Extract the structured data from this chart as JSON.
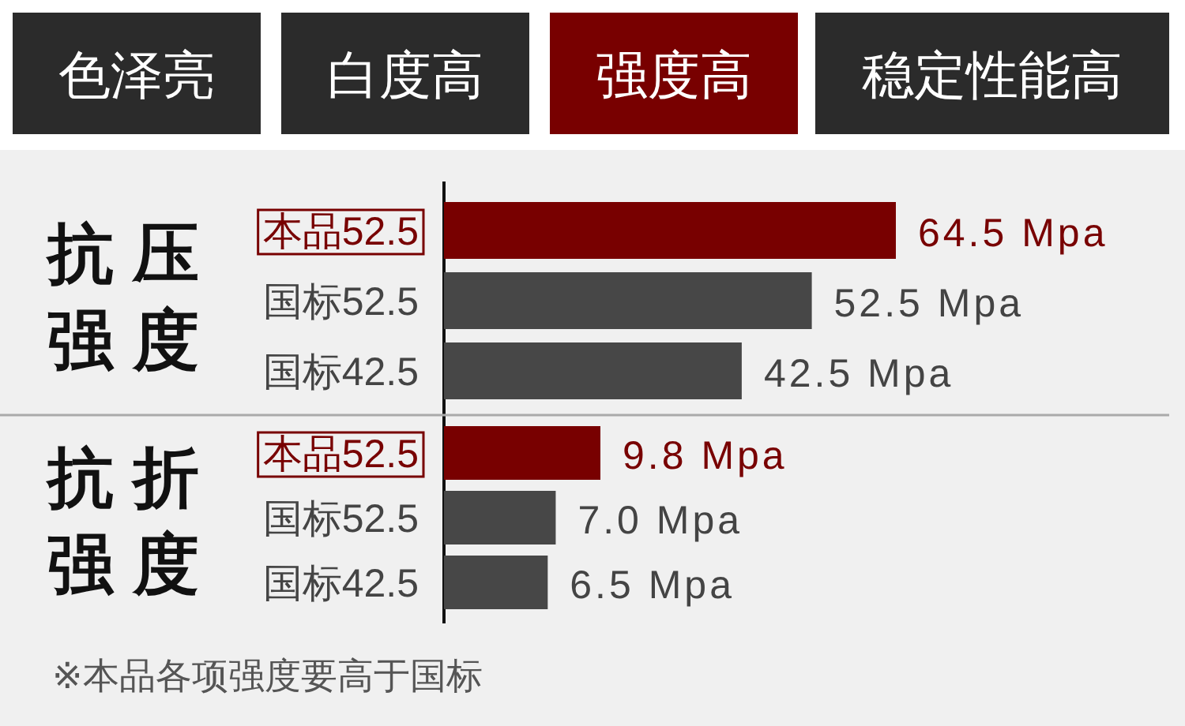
{
  "chart_data": [
    {
      "type": "other",
      "annotations": [
        "色泽亮",
        "白度高",
        "强度高",
        "稳定性能高"
      ],
      "colors": [
        "#2b2b2b",
        "#2b2b2b",
        "#780000",
        "#2b2b2b"
      ]
    },
    {
      "type": "bar",
      "orientation": "horizontal",
      "title": "抗压强度",
      "categories": [
        "本品52.5",
        "国标52.5",
        "国标42.5"
      ],
      "values": [
        64.5,
        52.5,
        42.5
      ],
      "colors": [
        "#780000",
        "#474747",
        "#474747"
      ],
      "value_labels": [
        "64.5 Mpa",
        "52.5 Mpa",
        "42.5 Mpa"
      ]
    },
    {
      "type": "bar",
      "orientation": "horizontal",
      "title": "抗折强度",
      "categories": [
        "本品52.5",
        "国标52.5",
        "国标42.5"
      ],
      "values": [
        9.8,
        7.0,
        6.5
      ],
      "colors": [
        "#780000",
        "#474747",
        "#474747"
      ],
      "value_labels": [
        "9.8 Mpa",
        "7.0 Mpa",
        "6.5 Mpa"
      ],
      "annotations": [
        "※本品各项强度要高于国标"
      ]
    }
  ]
}
